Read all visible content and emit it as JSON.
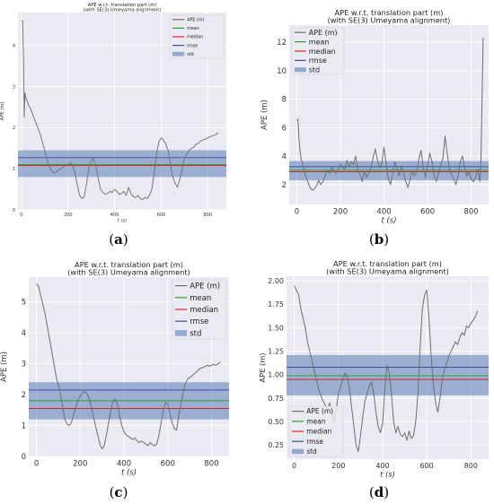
{
  "chart_data": [
    {
      "type": "line",
      "panel_label": "a",
      "title": "APE w.r.t. translation part (m)",
      "subtitle": "(with SE(3) Umeyama alignment)",
      "xlabel": "t (s)",
      "ylabel": "APE (m)",
      "xlim": [
        -15,
        880
      ],
      "ylim": [
        0,
        4.8
      ],
      "xticks": [
        0,
        200,
        400,
        600,
        800
      ],
      "yticks": [
        0,
        1,
        2,
        3,
        4
      ],
      "grid": true,
      "legend_position": "top-right",
      "legend": [
        "APE (m)",
        "mean",
        "median",
        "rmse",
        "std"
      ],
      "series": [
        {
          "name": "APE (m)",
          "x": [
            0,
            5,
            10,
            12,
            15,
            20,
            25,
            30,
            40,
            50,
            60,
            70,
            80,
            90,
            100,
            110,
            120,
            130,
            140,
            150,
            160,
            170,
            180,
            190,
            200,
            210,
            220,
            230,
            240,
            250,
            260,
            270,
            280,
            290,
            300,
            310,
            320,
            330,
            340,
            350,
            360,
            370,
            380,
            390,
            400,
            410,
            420,
            430,
            440,
            450,
            460,
            470,
            480,
            490,
            500,
            510,
            520,
            530,
            540,
            550,
            560,
            570,
            580,
            590,
            600,
            610,
            620,
            630,
            640,
            650,
            660,
            670,
            680,
            690,
            700,
            710,
            720,
            730,
            740,
            750,
            760,
            770,
            780,
            790,
            800,
            810,
            820,
            830,
            840,
            845
          ],
          "values": [
            4.6,
            4.6,
            3.4,
            2.25,
            2.85,
            2.7,
            2.65,
            2.55,
            2.45,
            2.3,
            2.15,
            2.0,
            1.85,
            1.65,
            1.45,
            1.2,
            1.05,
            0.95,
            0.9,
            0.92,
            0.98,
            1.0,
            1.05,
            1.1,
            1.1,
            1.15,
            1.08,
            0.9,
            0.6,
            0.35,
            0.28,
            0.32,
            0.65,
            1.05,
            1.2,
            1.25,
            1.05,
            0.75,
            0.5,
            0.42,
            0.38,
            0.4,
            0.45,
            0.42,
            0.5,
            0.45,
            0.38,
            0.4,
            0.45,
            0.35,
            0.55,
            0.4,
            0.32,
            0.3,
            0.35,
            0.28,
            0.25,
            0.3,
            0.28,
            0.35,
            0.5,
            0.9,
            1.35,
            1.65,
            1.75,
            1.7,
            1.6,
            1.45,
            1.1,
            0.8,
            0.65,
            0.55,
            0.75,
            1.0,
            1.25,
            1.35,
            1.45,
            1.5,
            1.52,
            1.6,
            1.62,
            1.68,
            1.7,
            1.72,
            1.75,
            1.78,
            1.8,
            1.82,
            1.85,
            1.88
          ]
        },
        {
          "name": "mean",
          "value": 1.1
        },
        {
          "name": "median",
          "value": 1.08
        },
        {
          "name": "rmse",
          "value": 1.27
        },
        {
          "name": "std",
          "range": [
            0.8,
            1.45
          ]
        }
      ]
    },
    {
      "type": "line",
      "panel_label": "b",
      "title": "APE w.r.t. translation part (m)",
      "subtitle": "(with SE(3) Umeyama alignment)",
      "xlabel": "t (s)",
      "ylabel": "APE (m)",
      "xlim": [
        -35,
        880
      ],
      "ylim": [
        0.6,
        13.2
      ],
      "xticks": [
        0,
        200,
        400,
        600,
        800
      ],
      "yticks": [
        2,
        4,
        6,
        8,
        10,
        12
      ],
      "grid": true,
      "legend_position": "top-left",
      "legend": [
        "APE (m)",
        "mean",
        "median",
        "rmse",
        "std"
      ],
      "series": [
        {
          "name": "APE (m)",
          "x": [
            0,
            5,
            10,
            15,
            20,
            30,
            40,
            50,
            60,
            70,
            80,
            90,
            100,
            110,
            120,
            130,
            140,
            150,
            160,
            170,
            180,
            190,
            200,
            210,
            220,
            230,
            240,
            250,
            260,
            270,
            280,
            290,
            300,
            310,
            320,
            330,
            340,
            350,
            360,
            370,
            380,
            390,
            400,
            410,
            420,
            430,
            440,
            450,
            460,
            470,
            480,
            490,
            500,
            510,
            520,
            530,
            540,
            550,
            560,
            570,
            580,
            590,
            600,
            610,
            620,
            630,
            640,
            650,
            660,
            670,
            680,
            690,
            700,
            710,
            720,
            730,
            740,
            750,
            760,
            770,
            780,
            790,
            800,
            810,
            820,
            830,
            840,
            845,
            850,
            855
          ],
          "values": [
            6.5,
            6.6,
            5.2,
            4.3,
            3.8,
            3.2,
            2.6,
            2.2,
            1.8,
            1.6,
            1.7,
            1.9,
            2.3,
            2.0,
            2.2,
            2.6,
            3.0,
            2.8,
            3.2,
            3.0,
            2.8,
            3.1,
            3.4,
            3.2,
            3.1,
            3.7,
            3.3,
            3.6,
            3.4,
            4.0,
            3.0,
            2.7,
            2.2,
            3.0,
            2.5,
            2.8,
            3.2,
            3.9,
            4.5,
            3.7,
            3.2,
            3.5,
            4.6,
            3.4,
            2.4,
            2.0,
            2.8,
            3.6,
            3.1,
            2.6,
            3.3,
            2.8,
            2.2,
            1.8,
            2.4,
            3.0,
            2.6,
            2.9,
            3.8,
            4.4,
            3.2,
            2.5,
            3.4,
            4.2,
            3.6,
            2.6,
            2.2,
            2.8,
            3.4,
            3.8,
            5.4,
            4.2,
            3.1,
            2.7,
            2.4,
            2.0,
            2.6,
            3.6,
            4.0,
            3.2,
            2.6,
            2.9,
            2.4,
            2.2,
            2.5,
            3.1,
            2.2,
            3.8,
            8.0,
            12.3
          ]
        },
        {
          "name": "mean",
          "value": 3.0
        },
        {
          "name": "median",
          "value": 2.9
        },
        {
          "name": "rmse",
          "value": 3.25
        },
        {
          "name": "std",
          "range": [
            2.3,
            3.65
          ]
        }
      ]
    },
    {
      "type": "line",
      "panel_label": "c",
      "title": "APE w.r.t. translation part (m)",
      "subtitle": "(with SE(3) Umeyama alignment)",
      "xlabel": "t (s)",
      "ylabel": "APE (m)",
      "xlim": [
        -35,
        880
      ],
      "ylim": [
        0,
        5.8
      ],
      "xticks": [
        0,
        200,
        400,
        600,
        800
      ],
      "yticks": [
        0,
        1,
        2,
        3,
        4,
        5
      ],
      "grid": true,
      "legend_position": "top-right",
      "legend": [
        "APE (m)",
        "mean",
        "median",
        "rmse",
        "std"
      ],
      "series": [
        {
          "name": "APE (m)",
          "x": [
            0,
            10,
            20,
            30,
            40,
            50,
            60,
            70,
            80,
            90,
            100,
            110,
            120,
            130,
            140,
            150,
            160,
            170,
            180,
            190,
            200,
            210,
            220,
            230,
            240,
            250,
            260,
            270,
            280,
            290,
            300,
            310,
            320,
            330,
            340,
            350,
            360,
            370,
            380,
            390,
            400,
            410,
            420,
            430,
            440,
            450,
            460,
            470,
            480,
            490,
            500,
            510,
            520,
            530,
            540,
            550,
            560,
            570,
            580,
            590,
            600,
            610,
            620,
            630,
            640,
            650,
            660,
            670,
            680,
            690,
            700,
            710,
            720,
            730,
            740,
            750,
            760,
            770,
            780,
            790,
            800,
            810,
            820,
            830,
            840
          ],
          "values": [
            5.6,
            5.5,
            5.2,
            4.9,
            4.6,
            4.2,
            3.8,
            3.4,
            3.0,
            2.6,
            2.3,
            2.0,
            1.6,
            1.2,
            1.05,
            1.0,
            1.1,
            1.35,
            1.6,
            1.8,
            1.95,
            2.05,
            2.1,
            2.05,
            1.9,
            1.65,
            1.3,
            1.0,
            0.7,
            0.4,
            0.25,
            0.35,
            0.7,
            1.1,
            1.5,
            1.8,
            1.85,
            1.7,
            1.3,
            1.0,
            0.8,
            0.7,
            0.65,
            0.6,
            0.55,
            0.6,
            0.5,
            0.45,
            0.5,
            0.45,
            0.4,
            0.35,
            0.45,
            0.38,
            0.35,
            0.4,
            0.7,
            1.1,
            1.5,
            1.75,
            1.7,
            1.4,
            1.1,
            0.9,
            0.85,
            1.3,
            1.7,
            2.05,
            2.35,
            2.5,
            2.55,
            2.6,
            2.68,
            2.72,
            2.8,
            2.85,
            2.88,
            2.9,
            2.95,
            2.92,
            2.95,
            2.98,
            2.95,
            3.0,
            3.05
          ]
        },
        {
          "name": "mean",
          "value": 1.8
        },
        {
          "name": "median",
          "value": 1.55
        },
        {
          "name": "rmse",
          "value": 2.15
        },
        {
          "name": "std",
          "range": [
            1.2,
            2.4
          ]
        }
      ]
    },
    {
      "type": "line",
      "panel_label": "d",
      "title": "APE w.r.t. translation part (m)",
      "subtitle": "(with SE(3) Umeyama alignment)",
      "xlabel": "t (s)",
      "ylabel": "APE (m)",
      "xlim": [
        -35,
        880
      ],
      "ylim": [
        0.1,
        2.05
      ],
      "xticks": [
        0,
        200,
        400,
        600,
        800
      ],
      "yticks": [
        0.25,
        0.5,
        0.75,
        1.0,
        1.25,
        1.5,
        1.75,
        2.0
      ],
      "ytick_labels": [
        "0.25",
        "0.50",
        "0.75",
        "1.00",
        "1.25",
        "1.50",
        "1.75",
        "2.00"
      ],
      "grid": true,
      "legend_position": "bottom-left",
      "legend": [
        "APE (m)",
        "mean",
        "median",
        "rmse",
        "std"
      ],
      "series": [
        {
          "name": "APE (m)",
          "x": [
            0,
            10,
            20,
            30,
            40,
            50,
            60,
            70,
            80,
            90,
            100,
            110,
            120,
            130,
            140,
            150,
            160,
            170,
            180,
            190,
            200,
            210,
            220,
            230,
            240,
            250,
            260,
            270,
            280,
            290,
            300,
            310,
            320,
            330,
            340,
            350,
            360,
            370,
            380,
            390,
            400,
            410,
            420,
            430,
            440,
            450,
            460,
            470,
            480,
            490,
            500,
            510,
            520,
            530,
            540,
            550,
            560,
            570,
            580,
            590,
            600,
            610,
            620,
            630,
            640,
            650,
            660,
            670,
            680,
            690,
            700,
            710,
            720,
            730,
            740,
            750,
            760,
            770,
            780,
            790,
            800,
            810,
            820,
            830
          ],
          "values": [
            1.95,
            1.9,
            1.85,
            1.7,
            1.6,
            1.5,
            1.35,
            1.25,
            1.15,
            1.05,
            0.95,
            0.85,
            0.78,
            0.72,
            0.68,
            0.62,
            0.7,
            0.6,
            0.5,
            0.62,
            0.8,
            0.88,
            0.95,
            1.02,
            0.98,
            0.85,
            0.65,
            0.45,
            0.25,
            0.18,
            0.35,
            0.55,
            0.72,
            0.8,
            0.88,
            0.92,
            0.8,
            0.6,
            0.45,
            0.38,
            0.48,
            0.85,
            1.1,
            1.02,
            0.8,
            0.5,
            0.38,
            0.45,
            0.36,
            0.34,
            0.38,
            0.3,
            0.4,
            0.32,
            0.35,
            0.5,
            0.8,
            1.3,
            1.7,
            1.85,
            1.9,
            1.6,
            1.2,
            0.9,
            0.7,
            0.6,
            0.75,
            0.95,
            1.05,
            1.12,
            1.2,
            1.25,
            1.3,
            1.35,
            1.32,
            1.4,
            1.45,
            1.42,
            1.52,
            1.5,
            1.55,
            1.58,
            1.62,
            1.68
          ]
        },
        {
          "name": "mean",
          "value": 0.99
        },
        {
          "name": "median",
          "value": 0.95
        },
        {
          "name": "rmse",
          "value": 1.08
        },
        {
          "name": "std",
          "range": [
            0.78,
            1.21
          ]
        }
      ]
    }
  ],
  "colors": {
    "background": "#eaeaf2",
    "grid": "#ffffff",
    "ape": "#6e6e6e",
    "mean": "#2ca02c",
    "median": "#d62728",
    "rmse": "#3d4f9a",
    "std": "#4c72b0"
  }
}
